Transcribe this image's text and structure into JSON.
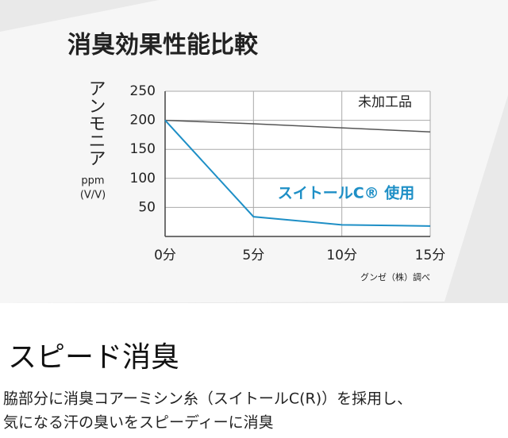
{
  "chart_data": {
    "type": "line",
    "title": "消臭効果性能比較",
    "y_label": "アンモニア",
    "y_unit": "ppm",
    "y_unit_detail": "(V/V)",
    "x": [
      0,
      5,
      10,
      15
    ],
    "xlim": [
      0,
      15
    ],
    "xticks": [
      {
        "value": 0,
        "label": "0分"
      },
      {
        "value": 5,
        "label": "5分"
      },
      {
        "value": 10,
        "label": "10分"
      },
      {
        "value": 15,
        "label": "15分"
      }
    ],
    "ylim": [
      0,
      250
    ],
    "yticks": [
      50,
      100,
      150,
      200,
      250
    ],
    "grid": true,
    "series": [
      {
        "name": "未加工品",
        "color": "#555555",
        "values": [
          200,
          194,
          187,
          180
        ]
      },
      {
        "name": "スイトールC® 使用",
        "color": "#1e8fc6",
        "values": [
          200,
          34,
          20,
          18
        ]
      }
    ],
    "source": "グンゼ（株）調べ"
  },
  "section": {
    "heading": "スピード消臭",
    "lines": [
      "脇部分に消臭コアーミシン糸（スイトールC(R)）を採用し、",
      "気になる汗の臭いをスピーディーに消臭"
    ]
  }
}
